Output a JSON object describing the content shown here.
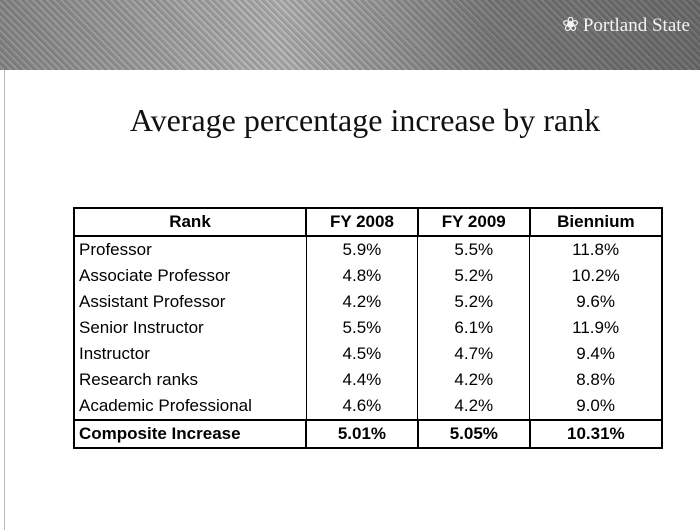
{
  "header": {
    "logo": "Portland State"
  },
  "title": "Average percentage increase by rank",
  "table": {
    "columns": [
      "Rank",
      "FY 2008",
      "FY 2009",
      "Biennium"
    ],
    "rows": [
      [
        "Professor",
        "5.9%",
        "5.5%",
        "11.8%"
      ],
      [
        "Associate Professor",
        "4.8%",
        "5.2%",
        "10.2%"
      ],
      [
        "Assistant Professor",
        "4.2%",
        "5.2%",
        "9.6%"
      ],
      [
        "Senior Instructor",
        "5.5%",
        "6.1%",
        "11.9%"
      ],
      [
        "Instructor",
        "4.5%",
        "4.7%",
        "9.4%"
      ],
      [
        "Research ranks",
        "4.4%",
        "4.2%",
        "8.8%"
      ],
      [
        "Academic Professional",
        "4.6%",
        "4.2%",
        "9.0%"
      ]
    ],
    "total": [
      "Composite Increase",
      "5.01%",
      "5.05%",
      "10.31%"
    ]
  }
}
